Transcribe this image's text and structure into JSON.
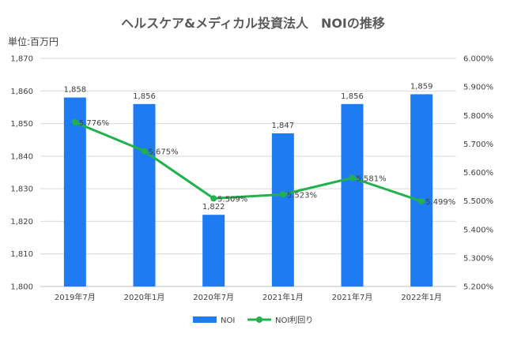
{
  "chart_data": {
    "type": "bar",
    "title": "ヘルスケア&メディカル投資法人　NOIの推移",
    "unit_label": "単位:百万円",
    "categories": [
      "2019年7月",
      "2020年1月",
      "2020年7月",
      "2021年1月",
      "2021年7月",
      "2022年1月"
    ],
    "series": [
      {
        "name": "NOI",
        "type": "bar",
        "axis": "left",
        "color": "#1f7bf2",
        "values": [
          1858,
          1856,
          1822,
          1847,
          1856,
          1859
        ],
        "labels": [
          "1,858",
          "1,856",
          "1,822",
          "1,847",
          "1,856",
          "1,859"
        ]
      },
      {
        "name": "NOI利回り",
        "type": "line",
        "axis": "right",
        "color": "#22b14c",
        "values": [
          5.776,
          5.675,
          5.509,
          5.523,
          5.581,
          5.499
        ],
        "labels": [
          "5.776%",
          "5.675%",
          "5.509%",
          "5.523%",
          "5.581%",
          "5.499%"
        ]
      }
    ],
    "y_left": {
      "min": 1800,
      "max": 1870,
      "step": 10,
      "tick_labels": [
        "1,800",
        "1,810",
        "1,820",
        "1,830",
        "1,840",
        "1,850",
        "1,860",
        "1,870"
      ]
    },
    "y_right": {
      "min": 5.2,
      "max": 6.0,
      "step": 0.1,
      "tick_labels": [
        "5.200%",
        "5.300%",
        "5.400%",
        "5.500%",
        "5.600%",
        "5.700%",
        "5.800%",
        "5.900%",
        "6.000%"
      ]
    },
    "grid": true,
    "legend_position": "bottom"
  }
}
